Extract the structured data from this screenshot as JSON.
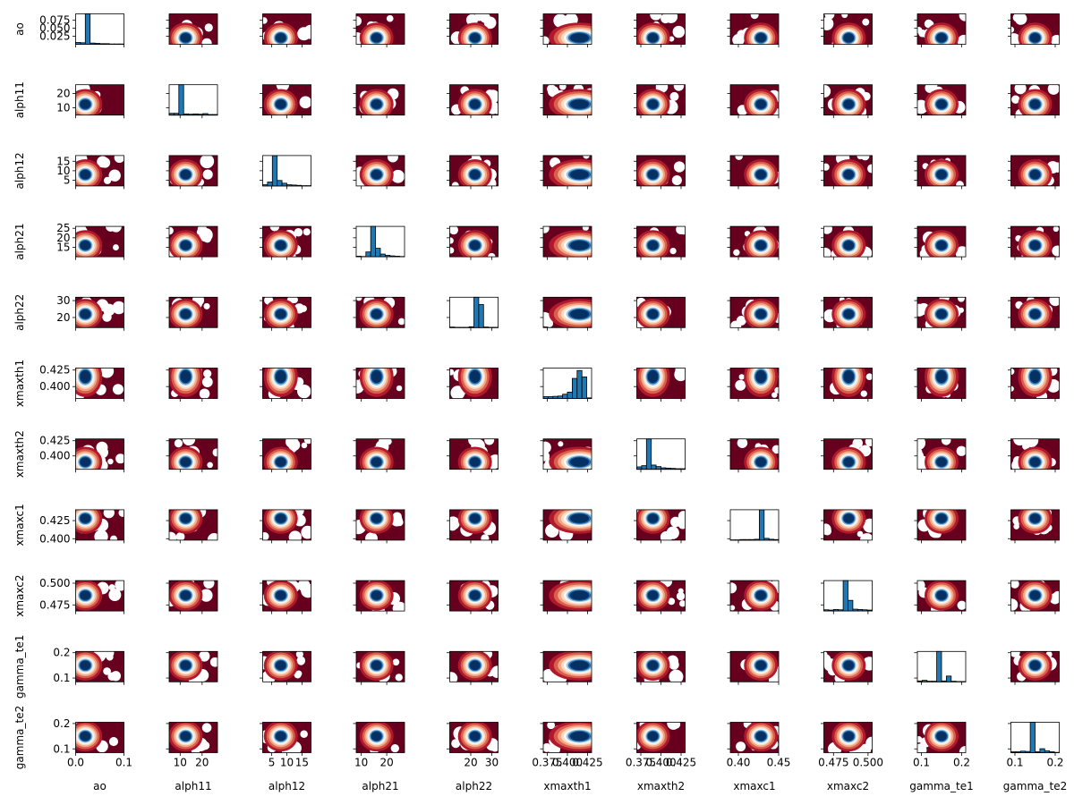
{
  "chart_data": {
    "type": "pair-grid",
    "title": "",
    "variables": [
      "ao",
      "alph11",
      "alph12",
      "alph21",
      "alph22",
      "xmaxth1",
      "xmaxth2",
      "xmaxc1",
      "xmaxc2",
      "gamma_te1",
      "gamma_te2"
    ],
    "x_axis": [
      {
        "lim": [
          0.0,
          0.1
        ],
        "ticks": [
          0.0,
          0.1
        ],
        "tick_labels": [
          "0.0",
          "0.1"
        ]
      },
      {
        "lim": [
          5,
          27
        ],
        "ticks": [
          10,
          20
        ],
        "tick_labels": [
          "10",
          "20"
        ]
      },
      {
        "lim": [
          2,
          18
        ],
        "ticks": [
          5,
          10,
          15
        ],
        "tick_labels": [
          "5",
          "10",
          "15"
        ]
      },
      {
        "lim": [
          8,
          27
        ],
        "ticks": [
          10,
          20
        ],
        "tick_labels": [
          "10",
          "20"
        ]
      },
      {
        "lim": [
          10,
          33
        ],
        "ticks": [
          20,
          30
        ],
        "tick_labels": [
          "20",
          "30"
        ]
      },
      {
        "lim": [
          0.37,
          0.43
        ],
        "ticks": [
          0.375,
          0.4,
          0.425
        ],
        "tick_labels": [
          "0.375",
          "0.400",
          "0.425"
        ]
      },
      {
        "lim": [
          0.37,
          0.43
        ],
        "ticks": [
          0.375,
          0.4,
          0.425
        ],
        "tick_labels": [
          "0.375",
          "0.400",
          "0.425"
        ]
      },
      {
        "lim": [
          0.39,
          0.45
        ],
        "ticks": [
          0.4,
          0.45
        ],
        "tick_labels": [
          "0.40",
          "0.45"
        ]
      },
      {
        "lim": [
          0.468,
          0.503
        ],
        "ticks": [
          0.475,
          0.5
        ],
        "tick_labels": [
          "0.475",
          "0.500"
        ]
      },
      {
        "lim": [
          0.09,
          0.21
        ],
        "ticks": [
          0.1,
          0.2
        ],
        "tick_labels": [
          "0.1",
          "0.2"
        ]
      },
      {
        "lim": [
          0.09,
          0.21
        ],
        "ticks": [
          0.1,
          0.2
        ],
        "tick_labels": [
          "0.1",
          "0.2"
        ]
      }
    ],
    "y_axis": [
      {
        "lim": [
          0.0,
          0.095
        ],
        "ticks": [
          0.025,
          0.05,
          0.075
        ],
        "tick_labels": [
          "0.025",
          "0.050",
          "0.075"
        ]
      },
      {
        "lim": [
          5,
          26
        ],
        "ticks": [
          10,
          20
        ],
        "tick_labels": [
          "10",
          "20"
        ]
      },
      {
        "lim": [
          2,
          18
        ],
        "ticks": [
          5,
          10,
          15
        ],
        "tick_labels": [
          "5",
          "10",
          "15"
        ]
      },
      {
        "lim": [
          10,
          26
        ],
        "ticks": [
          15,
          20,
          25
        ],
        "tick_labels": [
          "15",
          "20",
          "25"
        ]
      },
      {
        "lim": [
          14,
          32
        ],
        "ticks": [
          20,
          30
        ],
        "tick_labels": [
          "20",
          "30"
        ]
      },
      {
        "lim": [
          0.382,
          0.428
        ],
        "ticks": [
          0.4,
          0.425
        ],
        "tick_labels": [
          "0.400",
          "0.425"
        ]
      },
      {
        "lim": [
          0.378,
          0.428
        ],
        "ticks": [
          0.4,
          0.425
        ],
        "tick_labels": [
          "0.400",
          "0.425"
        ]
      },
      {
        "lim": [
          0.398,
          0.44
        ],
        "ticks": [
          0.4,
          0.425
        ],
        "tick_labels": [
          "0.400",
          "0.425"
        ]
      },
      {
        "lim": [
          0.468,
          0.503
        ],
        "ticks": [
          0.475,
          0.5
        ],
        "tick_labels": [
          "0.475",
          "0.500"
        ]
      },
      {
        "lim": [
          0.085,
          0.205
        ],
        "ticks": [
          0.1,
          0.2
        ],
        "tick_labels": [
          "0.1",
          "0.2"
        ]
      },
      {
        "lim": [
          0.085,
          0.205
        ],
        "ticks": [
          0.1,
          0.2
        ],
        "tick_labels": [
          "0.1",
          "0.2"
        ]
      }
    ],
    "mode": [
      0.02,
      12.5,
      8.0,
      16.0,
      22.0,
      0.415,
      0.39,
      0.428,
      0.486,
      0.15,
      0.15
    ],
    "histograms": [
      [
        0.06,
        0.05,
        1.0,
        0.04,
        0.03,
        0.02,
        0.02,
        0.01,
        0.01,
        0.01
      ],
      [
        0.06,
        0.06,
        1.0,
        0.04,
        0.03,
        0.04,
        0.03,
        0.05,
        0.02,
        0.02
      ],
      [
        0.04,
        0.13,
        1.0,
        0.18,
        0.09,
        0.04,
        0.03,
        0.02,
        0.01,
        0.01
      ],
      [
        0.02,
        0.01,
        0.16,
        1.0,
        0.28,
        0.09,
        0.05,
        0.03,
        0.02,
        0.01
      ],
      [
        0.02,
        0.01,
        0.01,
        0.01,
        0.03,
        1.0,
        0.76,
        0.02,
        0.01,
        0.01
      ],
      [
        0.06,
        0.06,
        0.07,
        0.08,
        0.14,
        0.21,
        0.66,
        0.92,
        0.71,
        0.02
      ],
      [
        0.08,
        0.12,
        1.0,
        0.14,
        0.09,
        0.05,
        0.04,
        0.03,
        0.02,
        0.02
      ],
      [
        0.01,
        0.01,
        0.02,
        0.02,
        0.02,
        0.03,
        1.0,
        0.06,
        0.03,
        0.02
      ],
      [
        0.04,
        0.03,
        0.05,
        0.04,
        1.0,
        0.35,
        0.06,
        0.05,
        0.04,
        0.03
      ],
      [
        0.03,
        0.05,
        0.02,
        0.02,
        1.0,
        0.03,
        0.19,
        0.02,
        0.01,
        0.01
      ],
      [
        0.03,
        0.03,
        0.05,
        0.04,
        1.0,
        0.03,
        0.13,
        0.06,
        0.03,
        0.01
      ]
    ],
    "density_colormap": [
      "#67001f",
      "#b2182b",
      "#d6604d",
      "#f4a582",
      "#fddbc7",
      "#f7f7f7",
      "#d1e5f0",
      "#92c5de",
      "#4393c3",
      "#2166ac",
      "#053061"
    ],
    "histogram_color": "#1f77b4",
    "grid": false,
    "legend": "none"
  }
}
